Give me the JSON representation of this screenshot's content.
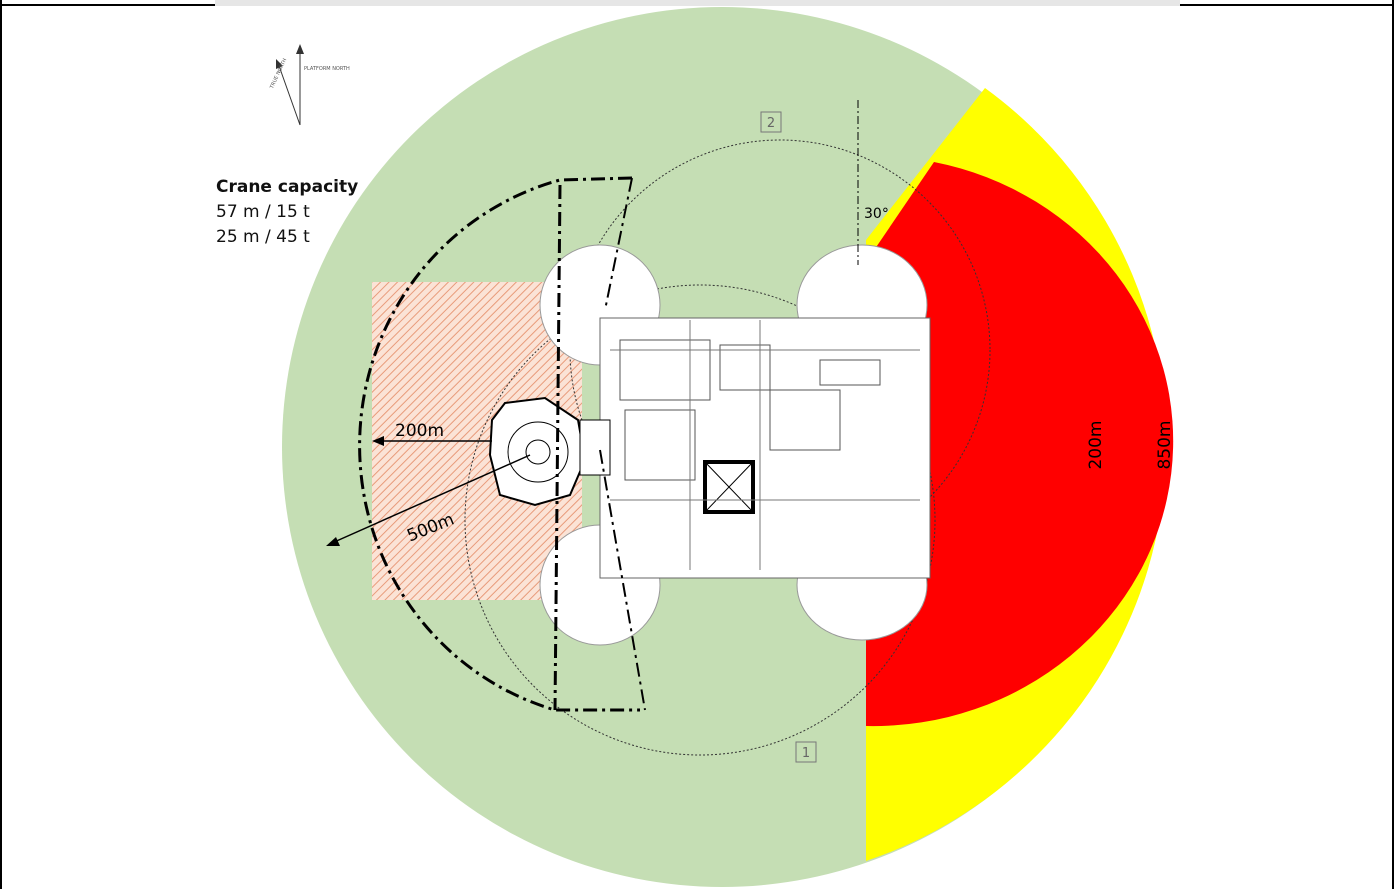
{
  "crane_capacity": {
    "title": "Crane capacity",
    "line1": "57 m / 15 t",
    "line2": "25 m / 45 t"
  },
  "labels": {
    "dist_200_left": "200m",
    "dist_500": "500m",
    "dist_200_right": "200m",
    "dist_850": "850m",
    "angle": "30°",
    "crane_1": "1",
    "crane_2": "2",
    "north_platform": "PLATFORM NORTH",
    "north_true": "TRUE NORTH"
  },
  "colors": {
    "green_zone": "#c5deb4",
    "yellow_zone": "#ffff00",
    "red_zone": "#ff0000",
    "hatch": "#f0b49a",
    "platform": "#ffffff"
  }
}
